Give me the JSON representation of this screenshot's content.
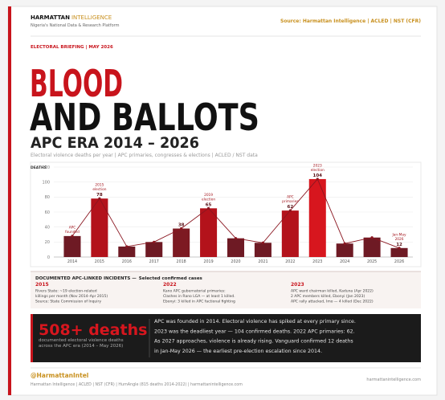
{
  "header": {
    "brand": "HARMATTAN",
    "brand_accent": "INTELLIGENCE",
    "tagline": "Nigeria's National Data & Research Platform",
    "sources": "Source: Harmattan Intelligence  |  ACLED  |  NST (CFR)",
    "briefing": "ELECTORAL BRIEFING  |  MAY 2026",
    "title_line1": "BLOOD",
    "title_line2": "AND BALLOTS",
    "title_line3": "APC ERA  2014 – 2026",
    "subtitle": "Electoral violence deaths per year  |  APC primaries, congresses & elections  |  ACLED / NST data"
  },
  "chart_data": {
    "type": "bar",
    "y_label": "DEATHS",
    "categories": [
      "2014",
      "2015",
      "2016",
      "2017",
      "2018",
      "2019",
      "2020",
      "2021",
      "2022",
      "2023",
      "2024",
      "2025",
      "2026"
    ],
    "values": [
      28,
      78,
      14,
      20,
      38,
      65,
      25,
      19,
      62,
      104,
      18,
      26,
      12
    ],
    "value_labels": [
      null,
      "78",
      null,
      null,
      "38",
      "65",
      null,
      null,
      "62",
      "104",
      null,
      null,
      "12"
    ],
    "colors": [
      "#6e1a24",
      "#b3121b",
      "#6e1a24",
      "#6e1a24",
      "#7d1a22",
      "#b3121b",
      "#6e1a24",
      "#6e1a24",
      "#b3121b",
      "#d7161e",
      "#6e1a24",
      "#6e1a24",
      "#6e1a24"
    ],
    "line": true,
    "line_color": "#8a1620",
    "ylim": [
      0,
      120
    ],
    "yticks": [
      0,
      20,
      40,
      60,
      80,
      100,
      120
    ],
    "grid": true,
    "annotations": [
      {
        "category": "2014",
        "lines": [
          "APC",
          "founded"
        ]
      },
      {
        "category": "2015",
        "lines": [
          "2015",
          "election"
        ]
      },
      {
        "category": "2019",
        "lines": [
          "2019",
          "election"
        ]
      },
      {
        "category": "2022",
        "lines": [
          "APC",
          "primaries"
        ]
      },
      {
        "category": "2023",
        "lines": [
          "2023",
          "election"
        ]
      },
      {
        "category": "2026",
        "lines": [
          "Jan-May",
          "2026"
        ]
      }
    ]
  },
  "incidents": {
    "title": "DOCUMENTED APC-LINKED INCIDENTS  —",
    "subtitle": "Selected confirmed cases",
    "columns": [
      {
        "year": "2015",
        "lines": [
          "Rivers State: ~19 election-related",
          "killings per month (Nov 2014–Apr 2015)",
          "Source: State Commission of Inquiry"
        ]
      },
      {
        "year": "2022",
        "lines": [
          "Kano APC gubernatorial primaries:",
          "Clashes in Rano LGA — at least 1 killed.",
          "Ebonyi: 3 killed in APC factional fighting"
        ]
      },
      {
        "year": "2023",
        "lines": [
          "APC ward chairman killed, Kaduna (Apr 2022)",
          "2 APC members killed, Ebonyi (Jan 2023)",
          "APC rally attacked, Imo — 4 killed (Dec 2022)"
        ]
      }
    ]
  },
  "summary": {
    "headline": "508+ deaths",
    "caption": [
      "documented electoral violence deaths",
      "across the APC era  (2014 – May 2026)"
    ],
    "text": [
      "APC was founded in 2014. Electoral violence has spiked at every primary since.",
      "2023 was the deadliest year — 104 confirmed deaths. 2022 APC primaries: 62.",
      "As 2027 approaches, violence is already rising. Vanguard confirmed 12 deaths",
      "in Jan-May 2026 — the earliest pre-election escalation since 2014."
    ]
  },
  "footer": {
    "handle": "@HarmattanIntel",
    "website": "harmattanintelligence.com",
    "credits": "Harmattan Intelligence  |  ACLED  |  NST (CFR)  |  HumAngle (815 deaths 2014-2022)  |  harmattanintelligence.com"
  }
}
